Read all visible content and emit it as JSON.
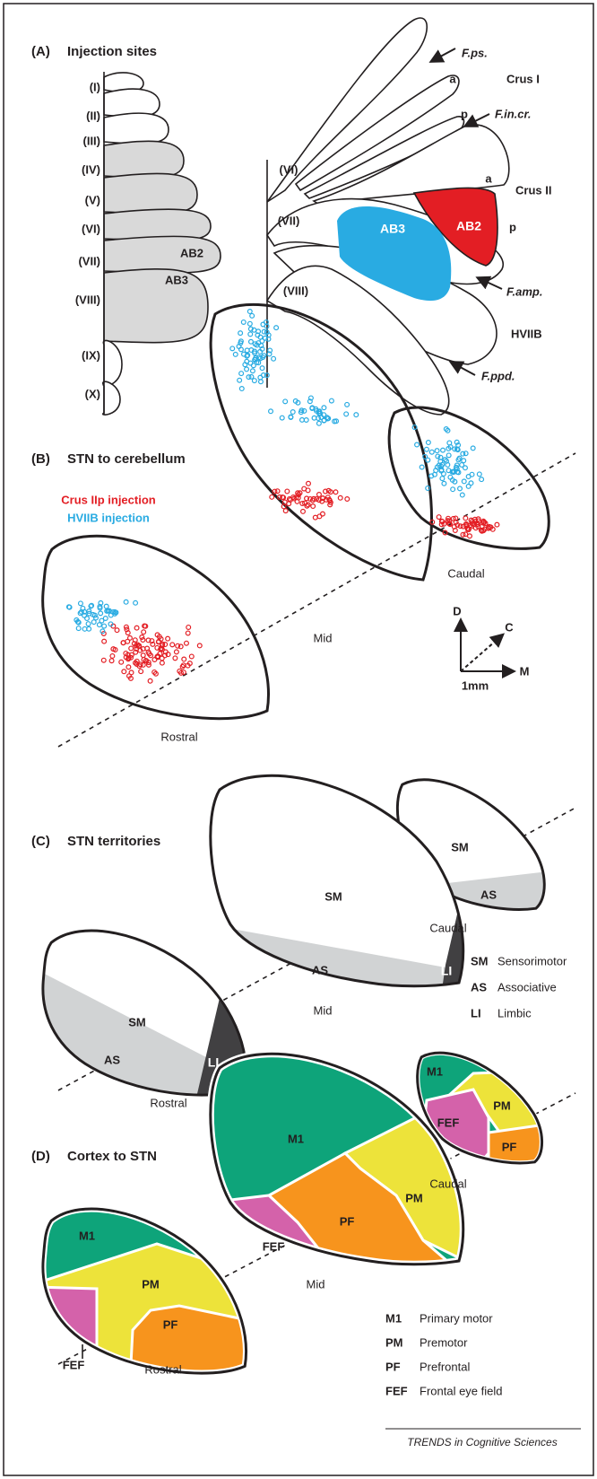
{
  "panel_a": {
    "label": "(A)",
    "title": "Injection sites",
    "lobules": [
      "(I)",
      "(II)",
      "(III)",
      "(IV)",
      "(V)",
      "(VI)",
      "(VII)",
      "(VIII)",
      "(IX)",
      "(X)"
    ],
    "left_regions": [
      "AB2",
      "AB3"
    ],
    "right_lobules": [
      "(VI)",
      "(VII)",
      "(VIII)"
    ],
    "fissures": [
      "F.ps.",
      "F.in.cr.",
      "F.amp.",
      "F.ppd."
    ],
    "lobule_names": [
      "Crus I",
      "Crus II",
      "HVIIB"
    ],
    "sublobules": [
      "a",
      "p",
      "a",
      "p"
    ],
    "right_regions": [
      "AB2",
      "AB3"
    ]
  },
  "panel_b": {
    "label": "(B)",
    "title": "STN to cerebellum",
    "legend": [
      {
        "name": "Crus IIp injection",
        "color": "#e31e24"
      },
      {
        "name": "HVIIB injection",
        "color": "#29abe2"
      }
    ],
    "sections": [
      "Caudal",
      "Mid",
      "Rostral"
    ],
    "axes": {
      "d": "D",
      "c": "C",
      "m": "M",
      "scale": "1mm"
    }
  },
  "panel_c": {
    "label": "(C)",
    "title": "STN territories",
    "sections": [
      "Caudal",
      "Mid",
      "Rostral"
    ],
    "region_labels": {
      "caudal": [
        "SM",
        "AS"
      ],
      "mid": [
        "SM",
        "AS",
        "LI"
      ],
      "rostral": [
        "SM",
        "AS",
        "LI"
      ]
    },
    "legend": [
      {
        "abbr": "SM",
        "name": "Sensorimotor"
      },
      {
        "abbr": "AS",
        "name": "Associative"
      },
      {
        "abbr": "LI",
        "name": "Limbic"
      }
    ]
  },
  "panel_d": {
    "label": "(D)",
    "title": "Cortex to STN",
    "sections": [
      "Caudal",
      "Mid",
      "Rostral"
    ],
    "region_labels": {
      "caudal": [
        "M1",
        "PM",
        "FEF",
        "PF"
      ],
      "mid": [
        "M1",
        "PM",
        "PF",
        "FEF"
      ],
      "rostral": [
        "M1",
        "PM",
        "PF",
        "FEF"
      ]
    },
    "legend": [
      {
        "abbr": "M1",
        "name": "Primary motor"
      },
      {
        "abbr": "PM",
        "name": "Premotor"
      },
      {
        "abbr": "PF",
        "name": "Prefrontal"
      },
      {
        "abbr": "FEF",
        "name": "Frontal eye field"
      }
    ]
  },
  "footer": "TRENDS in Cognitive Sciences"
}
